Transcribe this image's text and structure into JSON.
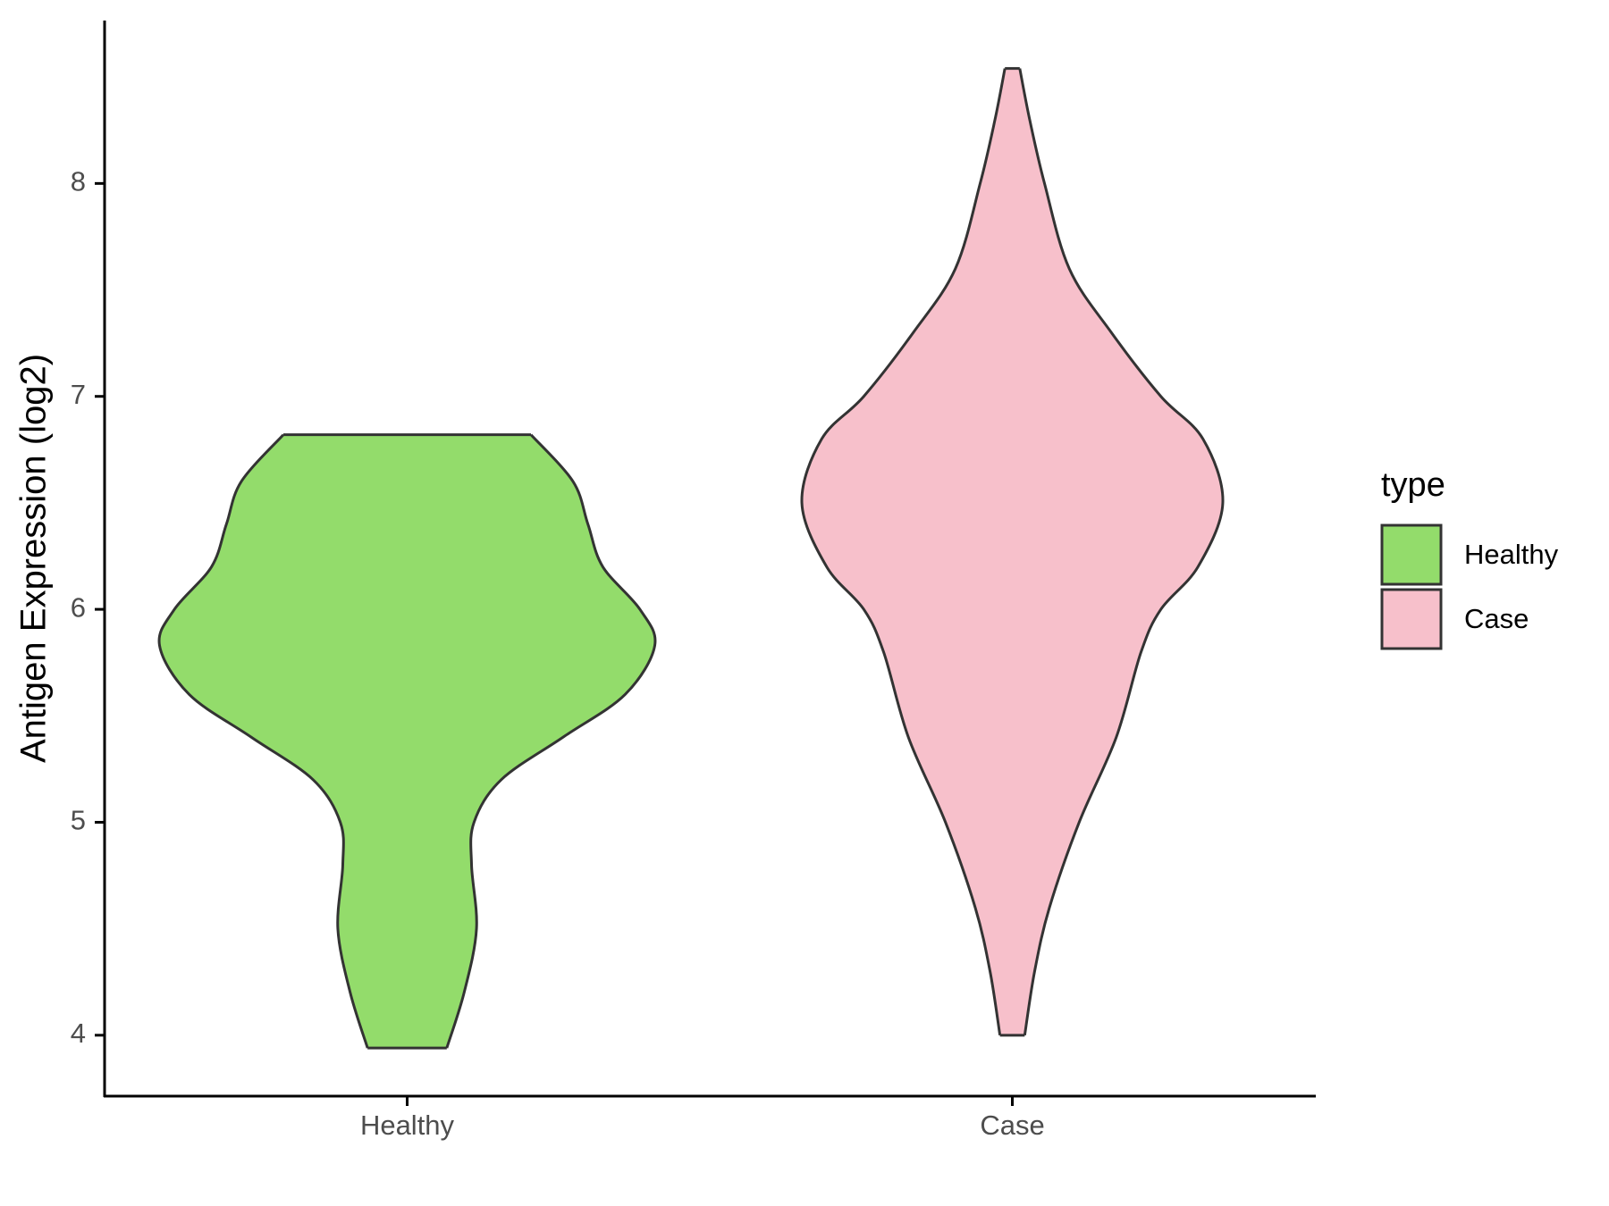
{
  "chart_data": {
    "type": "violin",
    "y_label": "Antigen Expression (log2)",
    "legend_title": "type",
    "ylim": [
      3.714,
      8.765
    ],
    "yticks": [
      4,
      5,
      6,
      7,
      8
    ],
    "series": [
      {
        "name": "Healthy",
        "color": "#93dc6b",
        "values": [
          3.94,
          4.2,
          4.5,
          4.8,
          5.0,
          5.2,
          5.4,
          5.6,
          5.83,
          6.0,
          6.2,
          6.4,
          6.6,
          6.82
        ],
        "density": [
          0.16,
          0.23,
          0.28,
          0.26,
          0.27,
          0.38,
          0.63,
          0.88,
          1.0,
          0.94,
          0.79,
          0.73,
          0.67,
          0.5
        ]
      },
      {
        "name": "Case",
        "color": "#f7c0cb",
        "values": [
          4.0,
          4.3,
          4.6,
          5.0,
          5.4,
          5.8,
          6.0,
          6.2,
          6.5,
          6.8,
          7.0,
          7.3,
          7.6,
          8.0,
          8.3,
          8.54
        ],
        "density": [
          0.05,
          0.09,
          0.15,
          0.27,
          0.42,
          0.52,
          0.6,
          0.75,
          0.85,
          0.77,
          0.6,
          0.4,
          0.23,
          0.13,
          0.07,
          0.03
        ]
      }
    ]
  }
}
